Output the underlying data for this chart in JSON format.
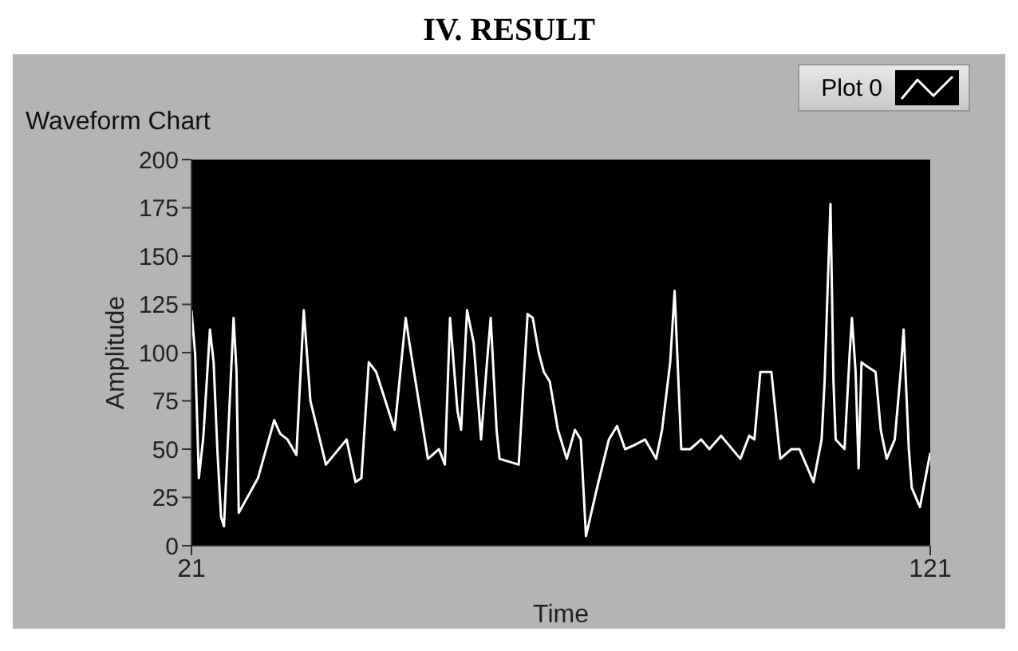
{
  "chart_data": {
    "type": "line",
    "title": "IV. RESULT",
    "subtitle": "Waveform Chart",
    "xlabel": "Time",
    "ylabel": "Amplitude",
    "xlim": [
      21,
      121
    ],
    "xticks": [
      21,
      121
    ],
    "ylim": [
      0,
      200
    ],
    "yticks": [
      0,
      25,
      50,
      75,
      100,
      125,
      150,
      175,
      200
    ],
    "legend": "top right",
    "marker": "none",
    "line_style": "solid",
    "series": [
      {
        "name": "Plot 0",
        "color": "#ffffff",
        "x": [
          21,
          21.5,
          22,
          22.6,
          23.5,
          24,
          24.5,
          25,
          25.4,
          26,
          26.7,
          27.1,
          27.4,
          30,
          32.2,
          33,
          34,
          35.2,
          36.2,
          37.1,
          39.2,
          42,
          43.2,
          44,
          45,
          46,
          48.5,
          50,
          50.5,
          53,
          54.5,
          55.3,
          56,
          57,
          57.5,
          58.3,
          59.2,
          60.2,
          61,
          61.5,
          62.3,
          62.7,
          65.3,
          66.5,
          67.2,
          68,
          68.7,
          69.5,
          70.6,
          71.8,
          72.9,
          73.7,
          74.4,
          75.9,
          77.5,
          78.6,
          79.7,
          80.9,
          82.4,
          83.9,
          84.7,
          85.8,
          86.4,
          87.3,
          88.5,
          90,
          91.1,
          92.7,
          93.1,
          95.3,
          96.5,
          97.2,
          98,
          99.5,
          100.3,
          100.7,
          102.2,
          103.3,
          105.2,
          106.3,
          106.7,
          107.1,
          107.5,
          107.9,
          108.2,
          109.4,
          110.1,
          110.4,
          110.9,
          111.3,
          111.7,
          112.4,
          113.6,
          114.3,
          115.1,
          116.2,
          117,
          117.4,
          118.1,
          118.5,
          119.6,
          121
        ],
        "values": [
          122,
          99,
          35,
          56,
          112,
          95,
          50,
          15,
          10,
          60,
          118,
          90,
          17,
          35,
          65,
          58,
          55,
          47,
          122,
          75,
          42,
          55,
          33,
          35,
          95,
          90,
          60,
          118,
          105,
          45,
          50,
          42,
          118,
          70,
          60,
          122,
          105,
          55,
          95,
          118,
          60,
          45,
          42,
          120,
          118,
          100,
          90,
          85,
          60,
          45,
          60,
          55,
          5,
          30,
          55,
          62,
          50,
          52,
          55,
          45,
          60,
          95,
          132,
          50,
          50,
          55,
          50,
          57,
          55,
          45,
          57,
          55,
          90,
          90,
          60,
          45,
          50,
          50,
          33,
          55,
          85,
          132,
          177,
          85,
          55,
          50,
          100,
          118,
          90,
          40,
          95,
          93,
          90,
          60,
          45,
          55,
          90,
          112,
          50,
          30,
          20,
          48
        ]
      }
    ]
  }
}
